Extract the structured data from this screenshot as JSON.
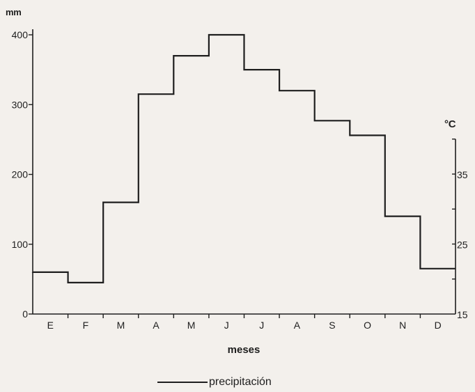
{
  "chart_data": {
    "type": "line",
    "step": true,
    "categories": [
      "E",
      "F",
      "M",
      "A",
      "M",
      "J",
      "J",
      "A",
      "S",
      "O",
      "N",
      "D"
    ],
    "series": [
      {
        "name": "precipitación",
        "values": [
          60,
          45,
          160,
          315,
          370,
          400,
          350,
          320,
          277,
          256,
          140,
          65
        ]
      }
    ],
    "ylabel": "mm",
    "ylim": [
      0,
      400
    ],
    "yticks": [
      0,
      100,
      200,
      300,
      400
    ],
    "y2label": "°C",
    "y2lim": [
      15,
      35
    ],
    "y2ticks": [
      15,
      25,
      35
    ],
    "y2_extent": [
      15,
      40
    ],
    "xlabel": "meses",
    "legend": "bottom",
    "grid": false,
    "line_color": "#1e1e1e"
  }
}
